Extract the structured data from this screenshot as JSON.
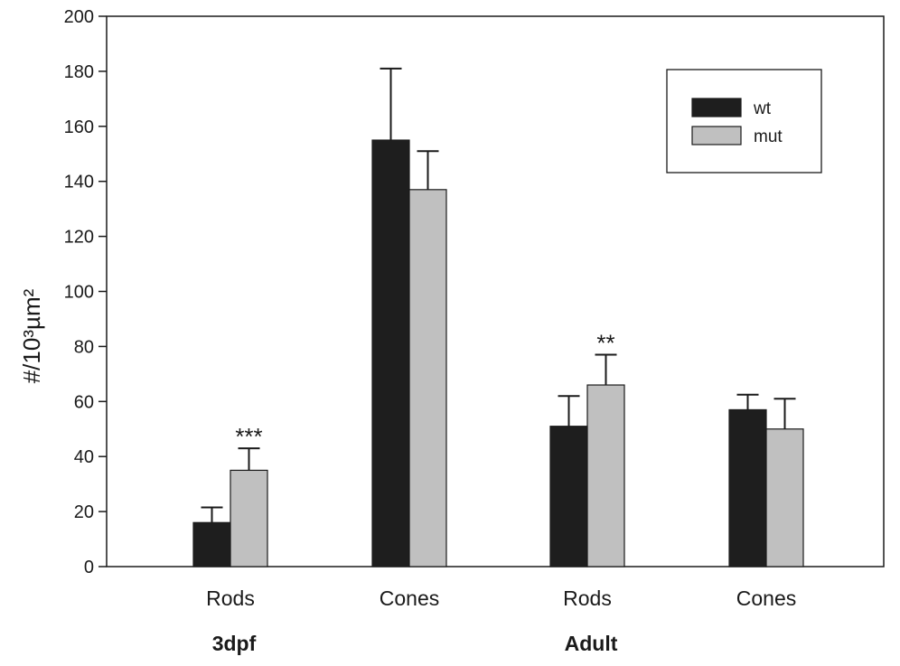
{
  "chart_data": {
    "type": "bar",
    "ylabel": "#/10³µm²",
    "ylim": [
      0,
      200
    ],
    "yticks": [
      0,
      20,
      40,
      60,
      80,
      100,
      120,
      140,
      160,
      180,
      200
    ],
    "categories": [
      "Rods",
      "Cones",
      "Rods",
      "Cones"
    ],
    "groups": [
      {
        "label": "3dpf",
        "categories": [
          0,
          1
        ]
      },
      {
        "label": "Adult",
        "categories": [
          2,
          3
        ]
      }
    ],
    "series": [
      {
        "name": "wt",
        "color": "#1e1e1e",
        "values": [
          16,
          155,
          51,
          57
        ],
        "errors": [
          5.5,
          26,
          11,
          5.5
        ]
      },
      {
        "name": "mut",
        "color": "#c0c0c0",
        "values": [
          35,
          137,
          66,
          50
        ],
        "errors": [
          8,
          14,
          11,
          11
        ]
      }
    ],
    "annotations": [
      {
        "text": "***",
        "category": 0,
        "series": 1
      },
      {
        "text": "**",
        "category": 2,
        "series": 1
      }
    ],
    "legend_position": "top-right",
    "grid": false
  }
}
